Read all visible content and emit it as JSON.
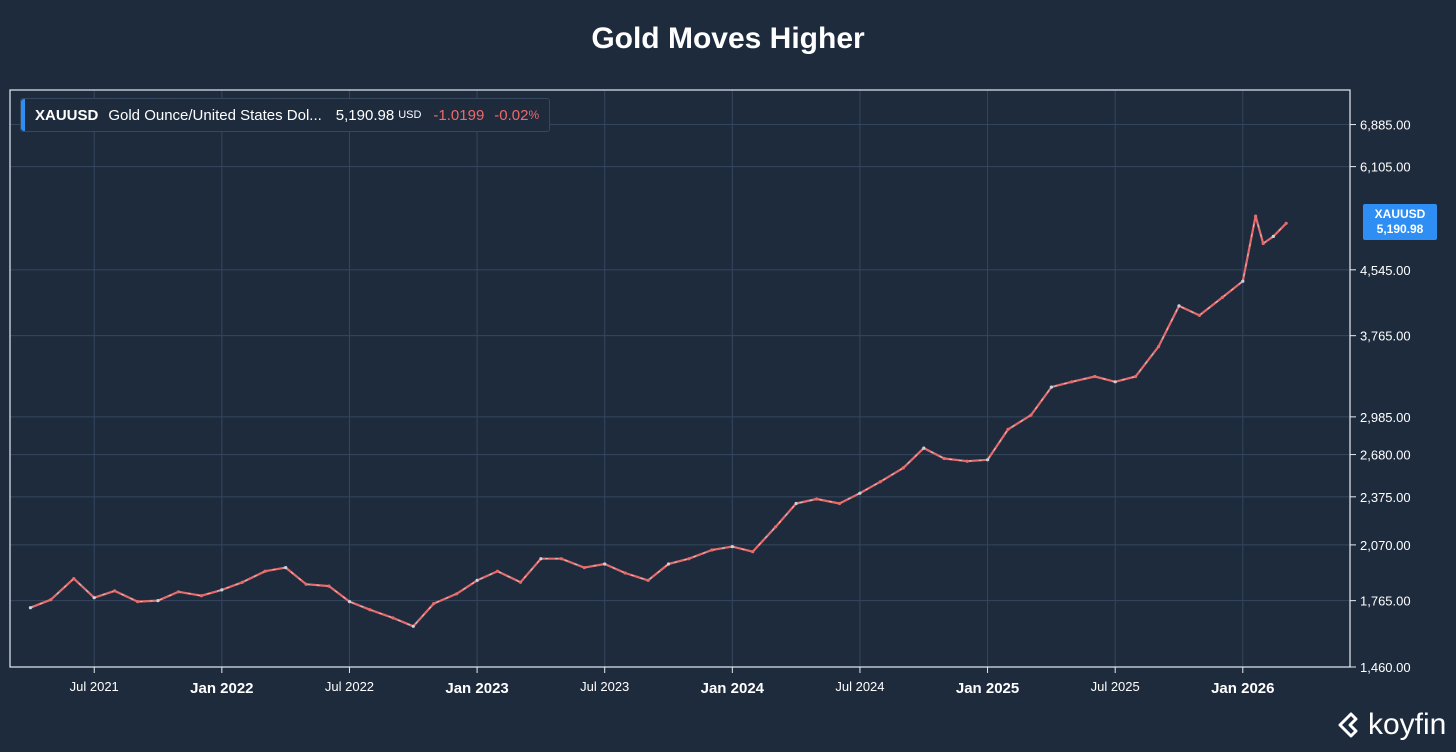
{
  "title": "Gold Moves Higher",
  "legend": {
    "ticker": "XAUUSD",
    "name": "Gold Ounce/United States Dol...",
    "price": "5,190.98",
    "currency": "USD",
    "change": "-1.0199",
    "change_pct": "-0.02",
    "pct_symbol": "%"
  },
  "price_tag": {
    "ticker": "XAUUSD",
    "price": "5,190.98"
  },
  "brand": {
    "name": "koyfin",
    "icon": "koyfin-logo-icon"
  },
  "colors": {
    "background": "#1e2b3d",
    "grid": "#34465e",
    "frame": "#e6ebf2",
    "candle_down": "#e36b6b",
    "candle_up": "#c9d3dd",
    "accent": "#2f8ef3",
    "negative": "#f0696b"
  },
  "chart_data": {
    "type": "line",
    "title": "Gold Moves Higher",
    "series": [
      {
        "name": "XAUUSD",
        "x": [
          2021.25,
          2021.33,
          2021.42,
          2021.5,
          2021.58,
          2021.67,
          2021.75,
          2021.83,
          2021.92,
          2022.0,
          2022.08,
          2022.17,
          2022.25,
          2022.33,
          2022.42,
          2022.5,
          2022.58,
          2022.67,
          2022.75,
          2022.83,
          2022.92,
          2023.0,
          2023.08,
          2023.17,
          2023.25,
          2023.33,
          2023.42,
          2023.5,
          2023.58,
          2023.67,
          2023.75,
          2023.83,
          2023.92,
          2024.0,
          2024.08,
          2024.17,
          2024.25,
          2024.33,
          2024.42,
          2024.5,
          2024.58,
          2024.67,
          2024.75,
          2024.83,
          2024.92,
          2025.0,
          2025.08,
          2025.17,
          2025.25,
          2025.33,
          2025.42,
          2025.5,
          2025.58,
          2025.67,
          2025.75,
          2025.83,
          2025.92,
          2026.0,
          2026.05,
          2026.08,
          2026.12,
          2026.17
        ],
        "values": [
          1730,
          1770,
          1880,
          1780,
          1815,
          1760,
          1765,
          1810,
          1790,
          1820,
          1860,
          1920,
          1940,
          1850,
          1840,
          1760,
          1720,
          1680,
          1640,
          1750,
          1800,
          1870,
          1920,
          1860,
          1990,
          1990,
          1940,
          1960,
          1910,
          1870,
          1960,
          1990,
          2040,
          2060,
          2030,
          2180,
          2330,
          2360,
          2330,
          2400,
          2480,
          2580,
          2730,
          2650,
          2630,
          2640,
          2880,
          3000,
          3250,
          3300,
          3350,
          3300,
          3350,
          3650,
          4100,
          3990,
          4200,
          4400,
          5300,
          4900,
          5000,
          5190.98
        ]
      }
    ],
    "x_ticks": [
      {
        "value": 2021.5,
        "label": "Jul 2021",
        "major": false
      },
      {
        "value": 2022.0,
        "label": "Jan 2022",
        "major": true
      },
      {
        "value": 2022.5,
        "label": "Jul 2022",
        "major": false
      },
      {
        "value": 2023.0,
        "label": "Jan 2023",
        "major": true
      },
      {
        "value": 2023.5,
        "label": "Jul 2023",
        "major": false
      },
      {
        "value": 2024.0,
        "label": "Jan 2024",
        "major": true
      },
      {
        "value": 2024.5,
        "label": "Jul 2024",
        "major": false
      },
      {
        "value": 2025.0,
        "label": "Jan 2025",
        "major": true
      },
      {
        "value": 2025.5,
        "label": "Jul 2025",
        "major": false
      },
      {
        "value": 2026.0,
        "label": "Jan 2026",
        "major": true
      }
    ],
    "y_ticks": [
      {
        "value": 1460,
        "label": "1,460.00"
      },
      {
        "value": 1765,
        "label": "1,765.00"
      },
      {
        "value": 2070,
        "label": "2,070.00"
      },
      {
        "value": 2375,
        "label": "2,375.00"
      },
      {
        "value": 2680,
        "label": "2,680.00"
      },
      {
        "value": 2985,
        "label": "2,985.00"
      },
      {
        "value": 3765,
        "label": "3,765.00"
      },
      {
        "value": 4545,
        "label": "4,545.00"
      },
      {
        "value": 6105,
        "label": "6,105.00"
      },
      {
        "value": 6885,
        "label": "6,885.00"
      }
    ],
    "xlim": [
      2021.17,
      2026.42
    ],
    "ylim": [
      1460,
      7600
    ],
    "y_scale": "log",
    "grid": true,
    "legend": "top-left"
  }
}
